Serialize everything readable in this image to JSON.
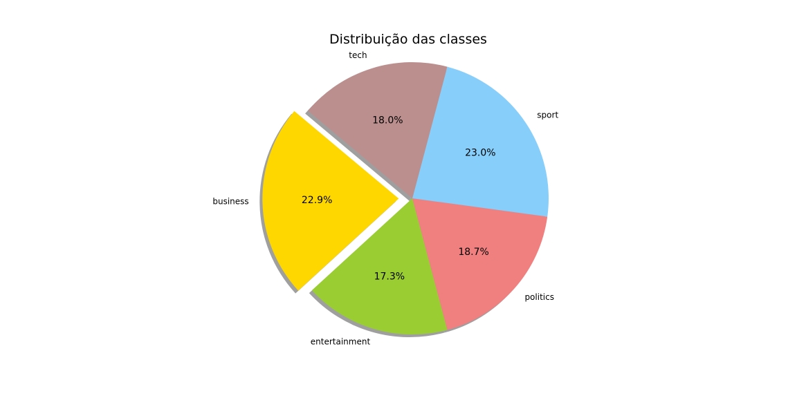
{
  "chart_data": {
    "type": "pie",
    "title": "Distribuição das classes",
    "slices": [
      {
        "label": "business",
        "value": 22.9,
        "pct_label": "22.9%",
        "color": "#FFD700",
        "exploded": true
      },
      {
        "label": "entertainment",
        "value": 17.3,
        "pct_label": "17.3%",
        "color": "#9ACD32",
        "exploded": false
      },
      {
        "label": "politics",
        "value": 18.7,
        "pct_label": "18.7%",
        "color": "#F08080",
        "exploded": false
      },
      {
        "label": "sport",
        "value": 23.0,
        "pct_label": "23.0%",
        "color": "#87CEFA",
        "exploded": false
      },
      {
        "label": "tech",
        "value": 18.0,
        "pct_label": "18.0%",
        "color": "#BC8F8F",
        "exploded": false
      }
    ],
    "shadow": true,
    "start_angle_deg": 140,
    "direction": "counterclockwise"
  }
}
